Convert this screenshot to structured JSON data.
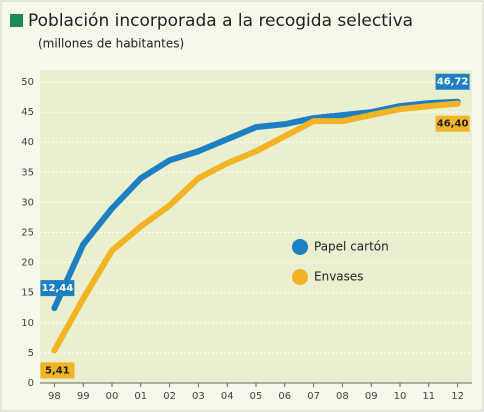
{
  "chart_data": {
    "type": "line",
    "title": "Población incorporada a la recogida selectiva",
    "subtitle": "(millones de habitantes)",
    "categories": [
      "98",
      "99",
      "00",
      "01",
      "02",
      "03",
      "04",
      "05",
      "06",
      "07",
      "08",
      "09",
      "10",
      "11",
      "12"
    ],
    "series": [
      {
        "name": "Papel cartón",
        "color": "#1b7fc1",
        "values": [
          12.44,
          23,
          29,
          34,
          37,
          38.5,
          40.5,
          42.5,
          43,
          44,
          44.5,
          45,
          46,
          46.5,
          46.72
        ],
        "value_labels": [
          "12,44",
          null,
          null,
          null,
          null,
          null,
          null,
          null,
          null,
          null,
          null,
          null,
          null,
          null,
          "46,72"
        ]
      },
      {
        "name": "Envases",
        "color": "#f2b324",
        "values": [
          5.41,
          14,
          22,
          26,
          29.5,
          34,
          36.5,
          38.5,
          41,
          43.5,
          43.5,
          44.5,
          45.5,
          46,
          46.4
        ],
        "value_labels": [
          "5,41",
          null,
          null,
          null,
          null,
          null,
          null,
          null,
          null,
          null,
          null,
          null,
          null,
          null,
          "46,40"
        ]
      }
    ],
    "ylim": [
      0,
      50
    ],
    "yticks": [
      0,
      5,
      10,
      15,
      20,
      25,
      30,
      35,
      40,
      45,
      50
    ],
    "grid": true,
    "legend": "right"
  }
}
